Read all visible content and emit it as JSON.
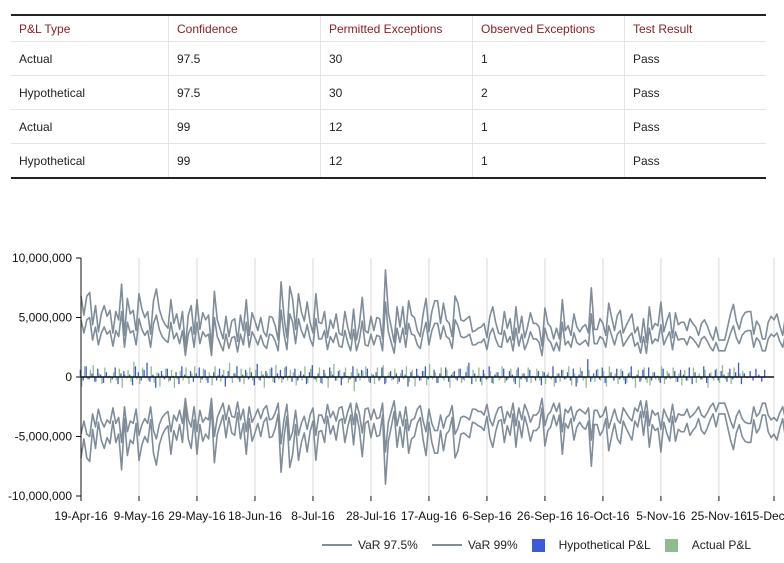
{
  "table": {
    "headers": [
      "P&L Type",
      "Confidence",
      "Permitted Exceptions",
      "Observed Exceptions",
      "Test Result"
    ],
    "rows": [
      [
        "Actual",
        "97.5",
        "30",
        "1",
        "Pass"
      ],
      [
        "Hypothetical",
        "97.5",
        "30",
        "2",
        "Pass"
      ],
      [
        "Actual",
        "99",
        "12",
        "1",
        "Pass"
      ],
      [
        "Hypothetical",
        "99",
        "12",
        "1",
        "Pass"
      ]
    ]
  },
  "colors": {
    "var_line": "#7f8c99",
    "hypothetical": "#3b5bd6",
    "actual": "#8fbc8f",
    "grid": "#d9d9d9",
    "axis": "#111111"
  },
  "chart_data": {
    "type": "line",
    "x_tick_labels": [
      "19-Apr-16",
      "9-May-16",
      "29-May-16",
      "18-Jun-16",
      "8-Jul-16",
      "28-Jul-16",
      "17-Aug-16",
      "6-Sep-16",
      "26-Sep-16",
      "16-Oct-16",
      "5-Nov-16",
      "25-Nov-16",
      "15-Dec-16"
    ],
    "y_ticks": [
      10000000,
      5000000,
      0,
      -5000000,
      -10000000
    ],
    "y_tick_labels": [
      "10,000,000",
      "5,000,000",
      "0",
      "-5,000,000",
      "-10,000,000"
    ],
    "ylim": [
      -10000000,
      10000000
    ],
    "grid": "vertical",
    "legend_position": "bottom",
    "legend": [
      "VaR 97.5%",
      "VaR 99%",
      "Hypothetical P&L",
      "Actual P&L"
    ],
    "n_points": 240,
    "series": [
      {
        "name": "VaR 99%",
        "kind": "line",
        "values": [
          6800000,
          5200000,
          6800000,
          7100000,
          4400000,
          6000000,
          3800000,
          5300000,
          6000000,
          5100000,
          5600000,
          3700000,
          5500000,
          4800000,
          7800000,
          3500000,
          6600000,
          5300000,
          5600000,
          3900000,
          7000000,
          5700000,
          5000000,
          5500000,
          3600000,
          6400000,
          7400000,
          5700000,
          4900000,
          4400000,
          4100000,
          6500000,
          4500000,
          5300000,
          4000000,
          5500000,
          2500000,
          5200000,
          6000000,
          3600000,
          6500000,
          4000000,
          5400000,
          4800000,
          5200000,
          2500000,
          7200000,
          4800000,
          4000000,
          3200000,
          5100000,
          3400000,
          4700000,
          4900000,
          3000000,
          5200000,
          3900000,
          6500000,
          3500000,
          5400000,
          4700000,
          3900000,
          5000000,
          3800000,
          3400000,
          5100000,
          5000000,
          4300000,
          3100000,
          8000000,
          5100000,
          3300000,
          7600000,
          6500000,
          4000000,
          7000000,
          5500000,
          4700000,
          6300000,
          4600000,
          3700000,
          7000000,
          4600000,
          4500000,
          5500000,
          3300000,
          4800000,
          4100000,
          5300000,
          3700000,
          3500000,
          5500000,
          4200000,
          3200000,
          5700000,
          3100000,
          4400000,
          6700000,
          3900000,
          3700000,
          5100000,
          3900000,
          5000000,
          4900000,
          3200000,
          9000000,
          5400000,
          4200000,
          2900000,
          5900000,
          4200000,
          5900000,
          3600000,
          6400000,
          5200000,
          5000000,
          3900000,
          3400000,
          5300000,
          6600000,
          3800000,
          5500000,
          6400000,
          6400000,
          4500000,
          6200000,
          4800000,
          4500000,
          3400000,
          6800000,
          6200000,
          4800000,
          4700000,
          4900000,
          5100000,
          3800000,
          3900000,
          4100000,
          4200000,
          4500000,
          3300000,
          5100000,
          5900000,
          4600000,
          3700000,
          3600000,
          5500000,
          4100000,
          4900000,
          3100000,
          5900000,
          3700000,
          5100000,
          3300000,
          4200000,
          5400000,
          4500000,
          4500000,
          4200000,
          2600000,
          5800000,
          4500000,
          4200000,
          3200000,
          4100000,
          3200000,
          6500000,
          3900000,
          4300000,
          3500000,
          5300000,
          4200000,
          3800000,
          4200000,
          4400000,
          3700000,
          7500000,
          4000000,
          4000000,
          4900000,
          4500000,
          3500000,
          6200000,
          5000000,
          3900000,
          5200000,
          5600000,
          3700000,
          4300000,
          4800000,
          5300000,
          3700000,
          4200000,
          2900000,
          4900000,
          2900000,
          5900000,
          4000000,
          4500000,
          4300000,
          6300000,
          3800000,
          4700000,
          5400000,
          3300000,
          5400000,
          4400000,
          4600000,
          4600000,
          3900000,
          4900000,
          4500000,
          4200000,
          3500000,
          4500000,
          4800000,
          4300000,
          3600000,
          3100000,
          4200000,
          3100000,
          3100000,
          3100000,
          4200000,
          5300000,
          6100000,
          4700000,
          4000000,
          5000000,
          5400000,
          5500000,
          5500000,
          3600000,
          4700000,
          4300000,
          3200000,
          3200000,
          4600000,
          5100000,
          4800000,
          5300000,
          4300000,
          3500000,
          5200000
        ],
        "color_key": "var_line"
      },
      {
        "name": "VaR 97.5%",
        "kind": "line",
        "values": [
          4800000,
          3700000,
          4800000,
          5000000,
          3100000,
          4200000,
          2700000,
          3700000,
          4200000,
          3600000,
          3900000,
          2600000,
          3900000,
          3400000,
          5500000,
          2500000,
          4600000,
          3700000,
          3900000,
          2700000,
          4900000,
          4000000,
          3500000,
          3900000,
          2500000,
          4500000,
          5200000,
          4000000,
          3400000,
          3100000,
          2900000,
          4600000,
          3200000,
          3700000,
          2800000,
          3900000,
          1800000,
          3600000,
          4200000,
          2500000,
          4600000,
          2800000,
          3800000,
          3400000,
          3600000,
          1800000,
          5000000,
          3400000,
          2800000,
          2200000,
          3600000,
          2400000,
          3300000,
          3400000,
          2100000,
          3600000,
          2700000,
          4600000,
          2500000,
          3800000,
          3300000,
          2700000,
          3500000,
          2700000,
          2400000,
          3600000,
          3500000,
          3000000,
          2200000,
          5600000,
          3600000,
          2300000,
          5300000,
          4600000,
          2800000,
          4900000,
          3900000,
          3300000,
          4400000,
          3200000,
          2600000,
          4900000,
          3200000,
          3200000,
          3900000,
          2300000,
          3400000,
          2900000,
          3700000,
          2600000,
          2500000,
          3900000,
          2900000,
          2200000,
          4000000,
          2200000,
          3100000,
          4700000,
          2700000,
          2600000,
          3600000,
          2700000,
          3500000,
          3400000,
          2200000,
          6300000,
          3800000,
          2900000,
          2000000,
          4100000,
          2900000,
          4100000,
          2500000,
          4500000,
          3600000,
          3500000,
          2700000,
          2400000,
          3700000,
          4600000,
          2700000,
          3900000,
          4500000,
          4500000,
          3200000,
          4300000,
          3400000,
          3200000,
          2400000,
          4800000,
          4300000,
          3400000,
          3300000,
          3400000,
          3600000,
          2700000,
          2700000,
          2900000,
          2900000,
          3200000,
          2300000,
          3600000,
          4100000,
          3200000,
          2600000,
          2500000,
          3900000,
          2900000,
          3400000,
          2200000,
          4100000,
          2600000,
          3600000,
          2300000,
          2900000,
          3800000,
          3200000,
          3200000,
          2900000,
          1800000,
          4100000,
          3200000,
          2900000,
          2200000,
          2900000,
          2200000,
          4600000,
          2700000,
          3000000,
          2500000,
          3700000,
          2900000,
          2700000,
          2900000,
          3100000,
          2600000,
          5300000,
          2800000,
          2800000,
          3400000,
          3200000,
          2500000,
          4300000,
          3500000,
          2700000,
          3600000,
          3900000,
          2600000,
          3000000,
          3400000,
          3700000,
          2600000,
          2900000,
          2000000,
          3400000,
          2000000,
          4100000,
          2800000,
          3200000,
          3000000,
          4400000,
          2700000,
          3300000,
          3800000,
          2300000,
          3800000,
          3100000,
          3200000,
          3200000,
          2700000,
          3400000,
          3200000,
          2900000,
          2500000,
          3200000,
          3400000,
          3000000,
          2500000,
          2200000,
          2900000,
          2200000,
          2200000,
          2200000,
          2900000,
          3700000,
          4300000,
          3300000,
          2800000,
          3500000,
          3800000,
          3900000,
          3900000,
          2500000,
          3300000,
          3000000,
          2200000,
          2200000,
          3200000,
          3600000,
          3400000,
          3700000,
          3000000,
          2500000,
          3600000
        ],
        "color_key": "var_line"
      },
      {
        "name": "Hypothetical P&L",
        "kind": "bar",
        "values": [
          600000,
          -300000,
          900000,
          -200000,
          300000,
          -400000,
          700000,
          200000,
          -500000,
          400000,
          100000,
          -200000,
          800000,
          -600000,
          300000,
          500000,
          -100000,
          200000,
          -700000,
          900000,
          400000,
          -300000,
          600000,
          1200000,
          -400000,
          200000,
          -900000,
          300000,
          500000,
          -200000,
          700000,
          -300000,
          100000,
          400000,
          -600000,
          900000,
          200000,
          -100000,
          500000,
          -400000,
          300000,
          800000,
          -200000,
          600000,
          -500000,
          100000,
          400000,
          -300000,
          700000,
          200000,
          -800000,
          500000,
          -100000,
          300000,
          900000,
          -400000,
          200000,
          600000,
          -200000,
          400000,
          -700000,
          1100000,
          -300000,
          200000,
          500000,
          -100000,
          800000,
          -500000,
          300000,
          600000,
          -200000,
          900000,
          100000,
          -400000,
          700000,
          -300000,
          500000,
          200000,
          -600000,
          400000,
          1000000,
          -200000,
          300000,
          -500000,
          600000,
          -100000,
          800000,
          200000,
          -300000,
          500000,
          -700000,
          400000,
          100000,
          -200000,
          900000,
          -400000,
          300000,
          600000,
          -100000,
          700000,
          -500000,
          200000,
          400000,
          -300000,
          800000,
          -600000,
          100000,
          500000,
          -200000,
          300000,
          -400000,
          600000,
          200000,
          -800000,
          400000,
          -100000,
          700000,
          -300000,
          500000,
          900000,
          -200000,
          100000,
          600000,
          -500000,
          300000,
          -100000,
          800000,
          -400000,
          200000,
          500000,
          -300000,
          700000,
          -200000,
          400000,
          1200000,
          -600000,
          300000,
          100000,
          -400000,
          600000,
          -200000,
          900000,
          -500000,
          200000,
          400000,
          -100000,
          700000,
          -300000,
          500000,
          200000,
          -600000,
          800000,
          -200000,
          300000,
          -400000,
          600000,
          100000,
          -300000,
          500000,
          -700000,
          400000,
          200000,
          -100000,
          900000,
          -500000,
          300000,
          600000,
          -200000,
          400000,
          -300000,
          700000,
          -800000,
          200000,
          500000,
          -100000,
          1500000,
          -400000,
          300000,
          600000,
          -200000,
          800000,
          -500000,
          100000,
          400000,
          -300000,
          700000,
          -200000,
          500000,
          -600000,
          300000,
          900000,
          -100000,
          200000,
          -400000,
          600000,
          -200000,
          800000,
          -300000,
          400000,
          100000,
          -500000,
          700000,
          -200000,
          300000,
          -100000,
          500000,
          -400000,
          600000,
          200000,
          -300000,
          800000,
          -600000,
          400000,
          100000,
          -200000,
          900000,
          -500000,
          300000,
          -100000,
          600000,
          -300000,
          500000,
          200000,
          -400000,
          700000,
          -200000,
          400000,
          1200000,
          -600000,
          300000,
          -100000,
          500000,
          -300000,
          700000,
          200000,
          -400000,
          600000
        ],
        "color_key": "hypothetical"
      },
      {
        "name": "Actual P&L",
        "kind": "bar",
        "values": [
          -800000,
          900000,
          -200000,
          600000,
          1000000,
          -400000,
          300000,
          -600000,
          800000,
          -100000,
          -500000,
          400000,
          -300000,
          700000,
          -900000,
          200000,
          600000,
          -400000,
          1300000,
          -200000,
          -600000,
          800000,
          -100000,
          -300000,
          900000,
          -500000,
          400000,
          -800000,
          200000,
          700000,
          -400000,
          600000,
          -900000,
          -200000,
          500000,
          -300000,
          800000,
          -600000,
          300000,
          900000,
          -100000,
          -500000,
          700000,
          -300000,
          400000,
          -700000,
          900000,
          200000,
          -400000,
          600000,
          -100000,
          1200000,
          -500000,
          300000,
          -200000,
          700000,
          -600000,
          400000,
          800000,
          -300000,
          600000,
          -200000,
          500000,
          -900000,
          300000,
          700000,
          -400000,
          1000000,
          -200000,
          -500000,
          800000,
          -300000,
          600000,
          400000,
          -700000,
          200000,
          -300000,
          900000,
          -500000,
          700000,
          -200000,
          -400000,
          800000,
          -600000,
          300000,
          -900000,
          500000,
          1100000,
          -300000,
          600000,
          -200000,
          800000,
          -500000,
          400000,
          -1200000,
          700000,
          -300000,
          500000,
          900000,
          -400000,
          300000,
          -600000,
          800000,
          -200000,
          1000000,
          -500000,
          400000,
          -300000,
          700000,
          -600000,
          300000,
          -200000,
          900000,
          -400000,
          600000,
          -800000,
          200000,
          -300000,
          500000,
          -700000,
          1100000,
          -200000,
          400000,
          -500000,
          800000,
          -300000,
          600000,
          -900000,
          400000,
          -200000,
          700000,
          -500000,
          -300000,
          900000,
          -100000,
          600000,
          -400000,
          800000,
          -700000,
          300000,
          -200000,
          500000,
          -600000,
          400000,
          -300000,
          900000,
          -500000,
          -200000,
          700000,
          -400000,
          600000,
          -900000,
          300000,
          -200000,
          800000,
          -500000,
          -100000,
          700000,
          -300000,
          500000,
          -600000,
          400000,
          -200000,
          -800000,
          300000,
          -400000,
          600000,
          -200000,
          900000,
          -700000,
          300000,
          -500000,
          800000,
          -300000,
          -900000,
          600000,
          -200000,
          -400000,
          700000,
          -300000,
          500000,
          -800000,
          900000,
          -100000,
          300000,
          -600000,
          700000,
          -300000,
          -500000,
          400000,
          -200000,
          -900000,
          600000,
          -300000,
          800000,
          -500000,
          -700000,
          400000,
          -200000,
          -300000,
          900000,
          -600000,
          500000,
          -200000,
          800000,
          -400000,
          300000,
          -700000,
          600000,
          -300000,
          -100000,
          800000,
          -500000,
          300000,
          -200000,
          600000,
          -900000,
          400000,
          -300000,
          700000,
          -500000,
          1000000,
          -200000,
          400000,
          -600000,
          800000,
          -100000,
          300000,
          500000
        ],
        "color_key": "actual"
      }
    ]
  }
}
